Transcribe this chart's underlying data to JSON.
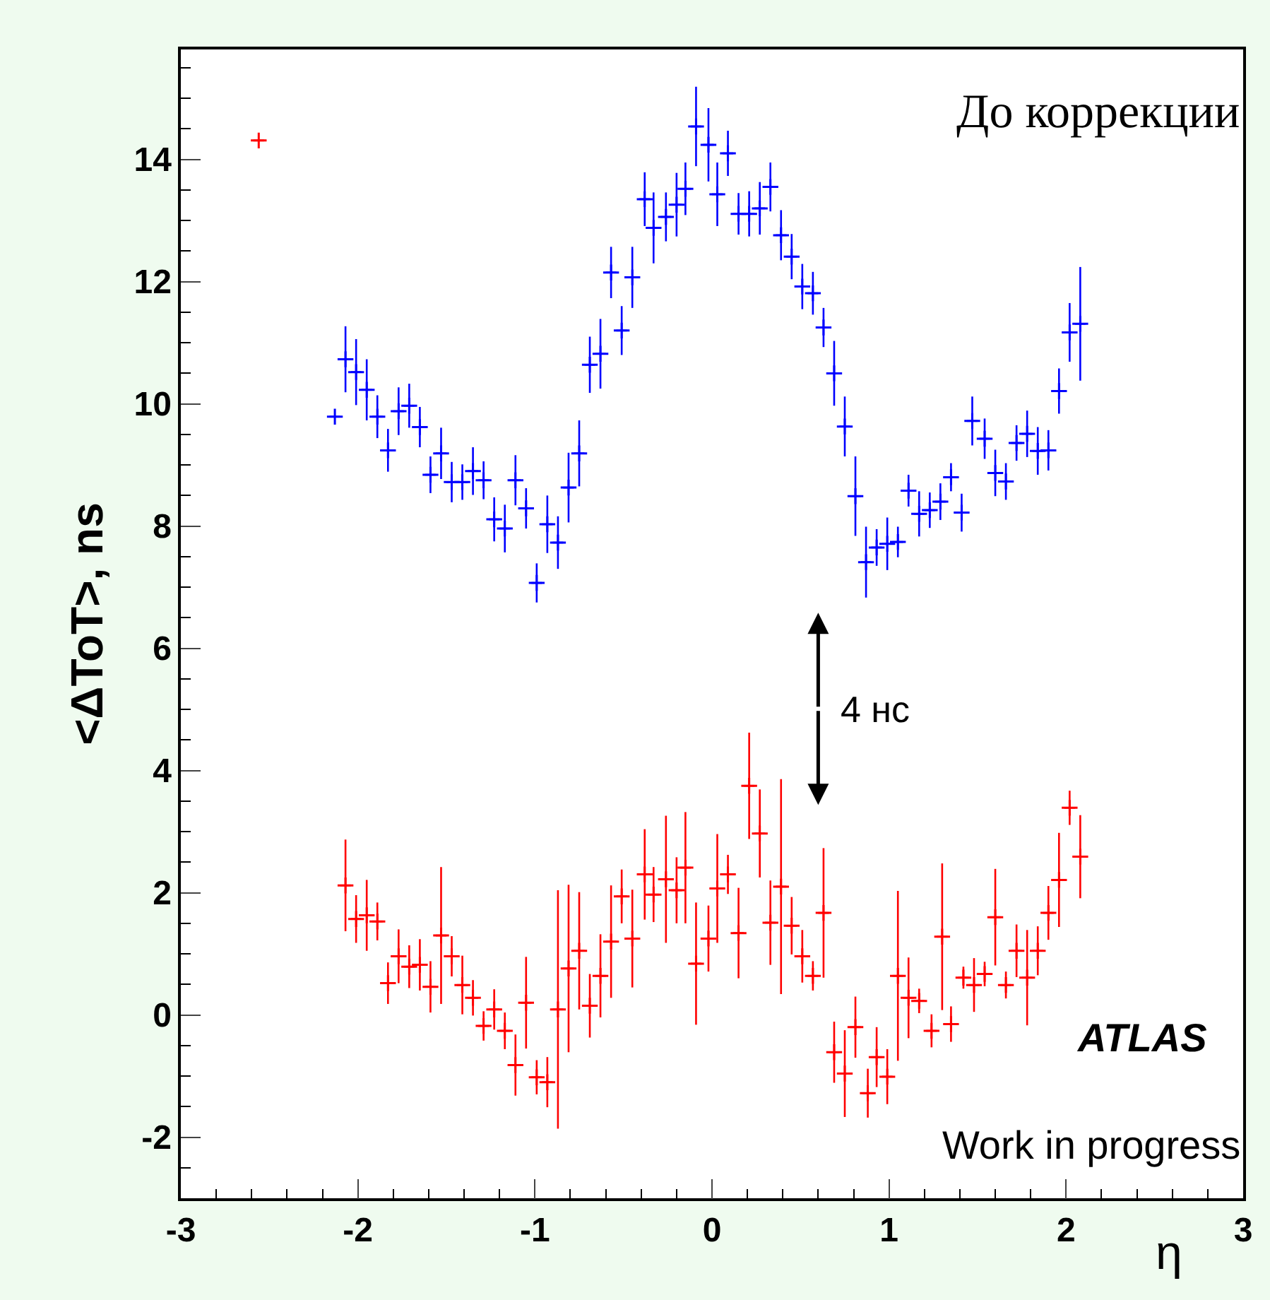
{
  "chart_data": {
    "type": "scatter",
    "ylabel": "<ΔToT>, ns",
    "xlabel": "η",
    "xlim": [
      -3,
      3
    ],
    "xticks": [
      -3,
      -2,
      -1,
      0,
      1,
      2,
      3
    ],
    "ylim": [
      -3,
      15.8
    ],
    "yticks": [
      -2,
      0,
      2,
      4,
      6,
      8,
      10,
      12,
      14
    ],
    "marker": "cross",
    "annotations": [
      "До коррекции",
      "4 нс",
      "ATLAS",
      "Work in progress"
    ],
    "series": [
      {
        "color": "#0000ff",
        "x": [
          -2.13,
          -2.07,
          -2.01,
          -1.95,
          -1.89,
          -1.83,
          -1.77,
          -1.71,
          -1.65,
          -1.59,
          -1.53,
          -1.47,
          -1.41,
          -1.35,
          -1.29,
          -1.23,
          -1.17,
          -1.11,
          -1.05,
          -0.99,
          -0.93,
          -0.87,
          -0.81,
          -0.75,
          -0.69,
          -0.63,
          -0.57,
          -0.51,
          -0.45,
          -0.38,
          -0.33,
          -0.26,
          -0.2,
          -0.15,
          -0.09,
          -0.02,
          0.03,
          0.09,
          0.15,
          0.21,
          0.27,
          0.33,
          0.39,
          0.45,
          0.51,
          0.57,
          0.63,
          0.69,
          0.75,
          0.81,
          0.87,
          0.93,
          0.99,
          1.05,
          1.11,
          1.17,
          1.23,
          1.29,
          1.35,
          1.41,
          1.47,
          1.54,
          1.6,
          1.66,
          1.72,
          1.78,
          1.84,
          1.9,
          1.96,
          2.02,
          2.08
        ],
        "values": [
          9.79,
          10.73,
          10.52,
          10.23,
          9.79,
          9.24,
          9.88,
          9.97,
          9.62,
          8.84,
          9.19,
          8.72,
          8.72,
          8.9,
          8.75,
          8.11,
          7.96,
          8.75,
          8.29,
          7.07,
          8.03,
          7.73,
          8.63,
          9.19,
          10.64,
          10.82,
          12.15,
          11.2,
          12.07,
          13.35,
          12.88,
          13.06,
          13.26,
          13.52,
          14.54,
          14.24,
          13.43,
          14.1,
          13.11,
          13.11,
          13.2,
          13.55,
          12.76,
          12.41,
          11.92,
          11.81,
          11.25,
          10.5,
          9.63,
          8.49,
          7.41,
          7.65,
          7.71,
          7.74,
          8.58,
          8.2,
          8.26,
          8.4,
          8.8,
          8.22,
          9.72,
          9.43,
          8.87,
          8.73,
          9.36,
          9.51,
          9.23,
          9.24,
          10.21,
          11.17,
          11.31
        ],
        "errors": [
          null,
          0.54,
          0.54,
          0.5,
          0.35,
          0.35,
          0.39,
          0.36,
          0.33,
          0.3,
          0.42,
          0.33,
          0.29,
          0.39,
          0.31,
          0.36,
          0.39,
          0.41,
          0.33,
          0.32,
          0.47,
          0.43,
          0.57,
          0.54,
          0.46,
          0.57,
          0.42,
          0.4,
          0.5,
          0.44,
          0.58,
          0.4,
          0.52,
          0.43,
          0.65,
          0.6,
          0.52,
          0.37,
          0.34,
          0.37,
          0.43,
          0.4,
          0.41,
          0.37,
          0.37,
          0.35,
          0.32,
          0.53,
          0.49,
          0.65,
          0.58,
          0.3,
          0.43,
          0.25,
          0.26,
          0.37,
          0.29,
          0.3,
          0.23,
          0.31,
          0.4,
          0.33,
          0.38,
          0.3,
          0.29,
          0.38,
          0.39,
          0.33,
          0.37,
          0.48,
          0.93
        ],
        "xerrors": [
          0.03,
          0.03,
          0.03,
          0.03,
          0.03,
          0.03,
          0.03,
          0.03,
          0.03,
          0.03,
          0.03,
          0.03,
          0.03,
          0.03,
          0.03,
          0.03,
          0.03,
          0.03,
          0.03,
          0.03,
          0.03,
          0.03,
          0.03,
          0.03,
          0.03,
          0.03,
          0.03,
          0.03,
          0.03,
          0.03,
          0.03,
          0.03,
          0.03,
          0.03,
          0.03,
          0.03,
          0.03,
          0.03,
          0.03,
          0.03,
          0.03,
          0.03,
          0.03,
          0.03,
          0.03,
          0.03,
          0.03,
          0.03,
          0.03,
          0.03,
          0.03,
          0.03,
          0.03,
          0.03,
          0.03,
          0.03,
          0.03,
          0.03,
          0.03,
          0.03,
          0.03,
          0.03,
          0.03,
          0.03,
          0.03,
          0.03,
          0.03,
          0.03,
          0.03,
          0.03,
          0.03
        ]
      },
      {
        "color": "#ff0000",
        "x": [
          -2.56,
          -2.07,
          -2.01,
          -1.95,
          -1.89,
          -1.83,
          -1.77,
          -1.71,
          -1.65,
          -1.59,
          -1.53,
          -1.47,
          -1.41,
          -1.35,
          -1.29,
          -1.23,
          -1.17,
          -1.11,
          -1.05,
          -0.99,
          -0.93,
          -0.87,
          -0.81,
          -0.75,
          -0.69,
          -0.63,
          -0.57,
          -0.51,
          -0.45,
          -0.38,
          -0.33,
          -0.26,
          -0.2,
          -0.15,
          -0.09,
          -0.02,
          0.03,
          0.09,
          0.15,
          0.21,
          0.27,
          0.33,
          0.39,
          0.45,
          0.51,
          0.57,
          0.63,
          0.69,
          0.75,
          0.81,
          0.88,
          0.93,
          0.99,
          1.05,
          1.11,
          1.17,
          1.24,
          1.3,
          1.35,
          1.42,
          1.48,
          1.54,
          1.6,
          1.66,
          1.72,
          1.78,
          1.84,
          1.9,
          1.96,
          2.02,
          2.08
        ],
        "values": [
          14.31,
          2.12,
          1.57,
          1.63,
          1.53,
          0.52,
          0.96,
          0.79,
          0.82,
          0.46,
          1.3,
          0.96,
          0.49,
          0.28,
          -0.18,
          0.09,
          -0.26,
          -0.82,
          0.2,
          -1.02,
          -1.1,
          0.09,
          0.76,
          1.05,
          0.15,
          0.64,
          1.2,
          1.94,
          1.25,
          2.3,
          1.97,
          2.22,
          2.04,
          2.41,
          0.84,
          1.25,
          2.07,
          2.3,
          1.34,
          3.75,
          2.97,
          1.51,
          2.1,
          1.46,
          0.96,
          0.64,
          1.67,
          -0.61,
          -0.96,
          -0.2,
          -1.28,
          -0.69,
          -1.01,
          0.64,
          0.28,
          0.23,
          -0.26,
          1.28,
          -0.15,
          0.61,
          0.49,
          0.67,
          1.6,
          0.49,
          1.05,
          0.61,
          1.05,
          1.67,
          2.21,
          3.39,
          2.59
        ],
        "errors": [
          null,
          0.75,
          0.39,
          0.58,
          0.31,
          0.34,
          0.44,
          0.35,
          0.42,
          0.42,
          1.12,
          0.33,
          0.48,
          0.29,
          0.24,
          0.33,
          0.3,
          0.5,
          0.75,
          0.28,
          0.41,
          1.95,
          1.37,
          0.96,
          0.52,
          0.68,
          0.92,
          0.44,
          0.8,
          0.74,
          0.45,
          1.04,
          0.54,
          0.91,
          1.0,
          0.54,
          0.89,
          0.32,
          0.74,
          0.87,
          0.72,
          0.69,
          1.76,
          0.47,
          0.43,
          0.24,
          1.06,
          0.5,
          0.71,
          0.5,
          0.4,
          0.49,
          0.45,
          1.39,
          0.66,
          0.2,
          0.27,
          1.2,
          0.29,
          0.18,
          0.44,
          0.2,
          0.79,
          0.22,
          0.43,
          0.78,
          0.4,
          0.44,
          0.77,
          0.28,
          0.68
        ],
        "xerrors": [
          0.03,
          0.03,
          0.03,
          0.03,
          0.03,
          0.03,
          0.03,
          0.03,
          0.03,
          0.03,
          0.03,
          0.03,
          0.03,
          0.03,
          0.03,
          0.03,
          0.03,
          0.03,
          0.03,
          0.03,
          0.03,
          0.03,
          0.03,
          0.03,
          0.03,
          0.03,
          0.03,
          0.03,
          0.03,
          0.03,
          0.03,
          0.03,
          0.03,
          0.03,
          0.03,
          0.03,
          0.03,
          0.03,
          0.03,
          0.03,
          0.03,
          0.03,
          0.03,
          0.03,
          0.03,
          0.03,
          0.03,
          0.03,
          0.03,
          0.03,
          0.03,
          0.03,
          0.03,
          0.03,
          0.03,
          0.03,
          0.03,
          0.03,
          0.03,
          0.03,
          0.03,
          0.03,
          0.03,
          0.03,
          0.03,
          0.03,
          0.03,
          0.03,
          0.03,
          0.03,
          0.03
        ]
      }
    ]
  }
}
